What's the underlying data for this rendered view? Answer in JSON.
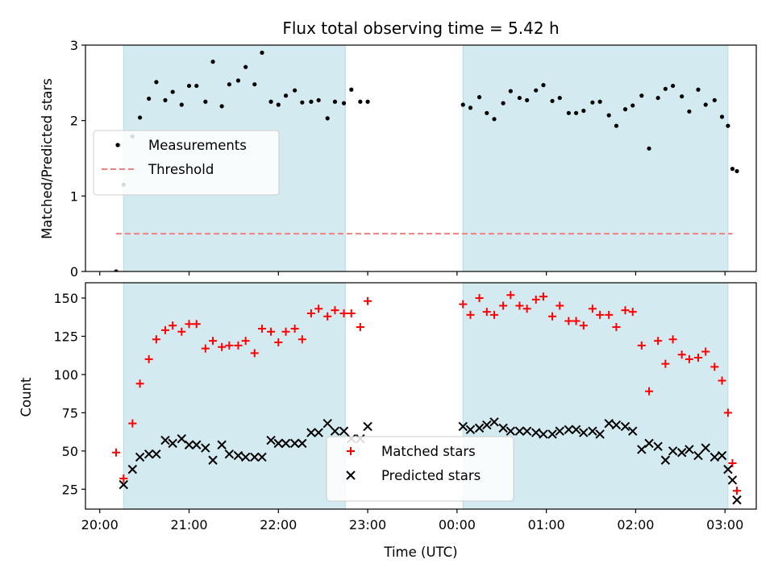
{
  "chart_data": {
    "title": "Flux total observing time = 5.42 h",
    "xlabel": "Time (UTC)",
    "x_tick_labels": [
      "20:00",
      "21:00",
      "22:00",
      "23:00",
      "00:00",
      "01:00",
      "02:00",
      "03:00"
    ],
    "x_range_hours_since_20_00": [
      -0.16,
      7.35
    ],
    "shaded_intervals": [
      [
        "20:16",
        "22:45"
      ],
      [
        "00:04",
        "03:02"
      ]
    ],
    "shade_color": "#d3eaf1",
    "panels": [
      {
        "type": "scatter",
        "ylabel": "Matched/Predicted stars",
        "ylim": [
          0,
          3
        ],
        "y_ticks": [
          0,
          1,
          2,
          3
        ],
        "legend": "middle-left",
        "threshold": {
          "name": "Threshold",
          "value": 0.5,
          "x_start": "20:11",
          "x_end": "03:05",
          "color": "#f08080",
          "style": "dashed"
        },
        "series": [
          {
            "name": "Measurements",
            "color": "#000000",
            "marker": "dot",
            "points": [
              [
                "20:11",
                0.0
              ],
              [
                "20:13",
                1.67
              ],
              [
                "20:16",
                1.15
              ],
              [
                "20:22",
                1.79
              ],
              [
                "20:27",
                2.04
              ],
              [
                "20:33",
                2.29
              ],
              [
                "20:38",
                2.51
              ],
              [
                "20:44",
                2.27
              ],
              [
                "20:49",
                2.38
              ],
              [
                "20:55",
                2.21
              ],
              [
                "21:00",
                2.46
              ],
              [
                "21:05",
                2.46
              ],
              [
                "21:11",
                2.25
              ],
              [
                "21:16",
                2.78
              ],
              [
                "21:22",
                2.19
              ],
              [
                "21:27",
                2.48
              ],
              [
                "21:33",
                2.53
              ],
              [
                "21:38",
                2.71
              ],
              [
                "21:44",
                2.48
              ],
              [
                "21:49",
                2.9
              ],
              [
                "21:55",
                2.25
              ],
              [
                "22:00",
                2.21
              ],
              [
                "22:05",
                2.33
              ],
              [
                "22:11",
                2.4
              ],
              [
                "22:16",
                2.24
              ],
              [
                "22:22",
                2.25
              ],
              [
                "22:27",
                2.27
              ],
              [
                "22:33",
                2.03
              ],
              [
                "22:38",
                2.25
              ],
              [
                "22:44",
                2.23
              ],
              [
                "22:49",
                2.41
              ],
              [
                "22:55",
                2.25
              ],
              [
                "23:00",
                2.25
              ],
              [
                "00:04",
                2.21
              ],
              [
                "00:09",
                2.17
              ],
              [
                "00:15",
                2.31
              ],
              [
                "00:20",
                2.1
              ],
              [
                "00:25",
                2.02
              ],
              [
                "00:31",
                2.23
              ],
              [
                "00:36",
                2.39
              ],
              [
                "00:42",
                2.3
              ],
              [
                "00:47",
                2.27
              ],
              [
                "00:53",
                2.4
              ],
              [
                "00:58",
                2.47
              ],
              [
                "01:04",
                2.26
              ],
              [
                "01:09",
                2.3
              ],
              [
                "01:15",
                2.1
              ],
              [
                "01:20",
                2.1
              ],
              [
                "01:25",
                2.13
              ],
              [
                "01:31",
                2.24
              ],
              [
                "01:36",
                2.25
              ],
              [
                "01:42",
                2.07
              ],
              [
                "01:47",
                1.93
              ],
              [
                "01:53",
                2.15
              ],
              [
                "01:58",
                2.2
              ],
              [
                "02:04",
                2.33
              ],
              [
                "02:09",
                1.63
              ],
              [
                "02:15",
                2.3
              ],
              [
                "02:20",
                2.42
              ],
              [
                "02:25",
                2.46
              ],
              [
                "02:31",
                2.32
              ],
              [
                "02:36",
                2.12
              ],
              [
                "02:42",
                2.41
              ],
              [
                "02:47",
                2.21
              ],
              [
                "02:53",
                2.27
              ],
              [
                "02:58",
                2.05
              ],
              [
                "03:02",
                1.93
              ],
              [
                "03:05",
                1.36
              ],
              [
                "03:08",
                1.33
              ]
            ]
          }
        ]
      },
      {
        "type": "scatter",
        "ylabel": "Count",
        "ylim": [
          12,
          160
        ],
        "y_ticks": [
          25,
          50,
          75,
          100,
          125,
          150
        ],
        "legend": "bottom-center",
        "series": [
          {
            "name": "Matched stars",
            "color": "#ff0000",
            "marker": "plus",
            "points": [
              [
                "20:11",
                49
              ],
              [
                "20:16",
                32
              ],
              [
                "20:22",
                68
              ],
              [
                "20:27",
                94
              ],
              [
                "20:33",
                110
              ],
              [
                "20:38",
                123
              ],
              [
                "20:44",
                129
              ],
              [
                "20:49",
                132
              ],
              [
                "20:55",
                128
              ],
              [
                "21:00",
                133
              ],
              [
                "21:05",
                133
              ],
              [
                "21:11",
                117
              ],
              [
                "21:16",
                122
              ],
              [
                "21:22",
                118
              ],
              [
                "21:27",
                119
              ],
              [
                "21:33",
                119
              ],
              [
                "21:38",
                122
              ],
              [
                "21:44",
                114
              ],
              [
                "21:49",
                130
              ],
              [
                "21:55",
                128
              ],
              [
                "22:00",
                121
              ],
              [
                "22:05",
                128
              ],
              [
                "22:11",
                130
              ],
              [
                "22:16",
                123
              ],
              [
                "22:22",
                140
              ],
              [
                "22:27",
                143
              ],
              [
                "22:33",
                138
              ],
              [
                "22:38",
                142
              ],
              [
                "22:44",
                140
              ],
              [
                "22:49",
                140
              ],
              [
                "22:55",
                131
              ],
              [
                "23:00",
                148
              ],
              [
                "00:04",
                146
              ],
              [
                "00:09",
                139
              ],
              [
                "00:15",
                150
              ],
              [
                "00:20",
                141
              ],
              [
                "00:25",
                139
              ],
              [
                "00:31",
                145
              ],
              [
                "00:36",
                152
              ],
              [
                "00:42",
                145
              ],
              [
                "00:47",
                143
              ],
              [
                "00:53",
                149
              ],
              [
                "00:58",
                151
              ],
              [
                "01:04",
                138
              ],
              [
                "01:09",
                145
              ],
              [
                "01:15",
                135
              ],
              [
                "01:20",
                135
              ],
              [
                "01:25",
                132
              ],
              [
                "01:31",
                143
              ],
              [
                "01:36",
                139
              ],
              [
                "01:42",
                139
              ],
              [
                "01:47",
                131
              ],
              [
                "01:53",
                142
              ],
              [
                "01:58",
                141
              ],
              [
                "02:04",
                119
              ],
              [
                "02:09",
                89
              ],
              [
                "02:15",
                122
              ],
              [
                "02:20",
                107
              ],
              [
                "02:25",
                123
              ],
              [
                "02:31",
                113
              ],
              [
                "02:36",
                110
              ],
              [
                "02:42",
                111
              ],
              [
                "02:47",
                115
              ],
              [
                "02:53",
                105
              ],
              [
                "02:58",
                96
              ],
              [
                "03:02",
                75
              ],
              [
                "03:05",
                42
              ],
              [
                "03:08",
                24
              ]
            ]
          },
          {
            "name": "Predicted stars",
            "color": "#000000",
            "marker": "x",
            "points": [
              [
                "20:16",
                28
              ],
              [
                "20:22",
                38
              ],
              [
                "20:27",
                46
              ],
              [
                "20:33",
                48
              ],
              [
                "20:38",
                48
              ],
              [
                "20:44",
                57
              ],
              [
                "20:49",
                55
              ],
              [
                "20:55",
                58
              ],
              [
                "21:00",
                54
              ],
              [
                "21:05",
                54
              ],
              [
                "21:11",
                52
              ],
              [
                "21:16",
                44
              ],
              [
                "21:22",
                54
              ],
              [
                "21:27",
                48
              ],
              [
                "21:33",
                47
              ],
              [
                "21:38",
                46
              ],
              [
                "21:44",
                46
              ],
              [
                "21:49",
                46
              ],
              [
                "21:55",
                57
              ],
              [
                "22:00",
                55
              ],
              [
                "22:05",
                55
              ],
              [
                "22:11",
                55
              ],
              [
                "22:16",
                55
              ],
              [
                "22:22",
                62
              ],
              [
                "22:27",
                62
              ],
              [
                "22:33",
                68
              ],
              [
                "22:38",
                63
              ],
              [
                "22:44",
                63
              ],
              [
                "22:49",
                58
              ],
              [
                "22:55",
                58
              ],
              [
                "23:00",
                66
              ],
              [
                "00:04",
                66
              ],
              [
                "00:09",
                64
              ],
              [
                "00:15",
                65
              ],
              [
                "00:20",
                67
              ],
              [
                "00:25",
                69
              ],
              [
                "00:31",
                65
              ],
              [
                "00:36",
                63
              ],
              [
                "00:42",
                63
              ],
              [
                "00:47",
                63
              ],
              [
                "00:53",
                62
              ],
              [
                "00:58",
                61
              ],
              [
                "01:04",
                61
              ],
              [
                "01:09",
                63
              ],
              [
                "01:15",
                64
              ],
              [
                "01:20",
                64
              ],
              [
                "01:25",
                62
              ],
              [
                "01:31",
                63
              ],
              [
                "01:36",
                61
              ],
              [
                "01:42",
                68
              ],
              [
                "01:47",
                67
              ],
              [
                "01:53",
                66
              ],
              [
                "01:58",
                63
              ],
              [
                "02:04",
                51
              ],
              [
                "02:09",
                55
              ],
              [
                "02:15",
                53
              ],
              [
                "02:20",
                44
              ],
              [
                "02:25",
                50
              ],
              [
                "02:31",
                49
              ],
              [
                "02:36",
                51
              ],
              [
                "02:42",
                47
              ],
              [
                "02:47",
                52
              ],
              [
                "02:53",
                46
              ],
              [
                "02:58",
                47
              ],
              [
                "03:02",
                38
              ],
              [
                "03:05",
                31
              ],
              [
                "03:08",
                18
              ]
            ]
          }
        ]
      }
    ]
  }
}
